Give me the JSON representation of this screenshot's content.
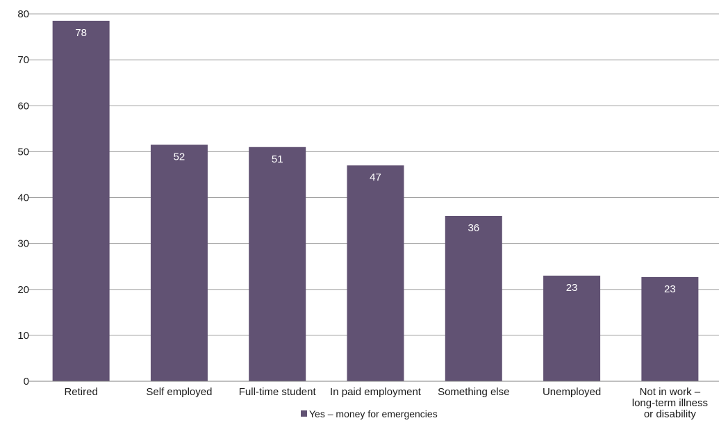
{
  "chart_data": {
    "type": "bar",
    "categories": [
      "Retired",
      "Self employed",
      "Full-time student",
      "In paid employment",
      "Something else",
      "Unemployed",
      "Not in work – long-term illness or disability"
    ],
    "category_lines": [
      [
        "Retired"
      ],
      [
        "Self employed"
      ],
      [
        "Full-time student"
      ],
      [
        "In paid employment"
      ],
      [
        "Something else"
      ],
      [
        "Unemployed"
      ],
      [
        "Not in work –",
        "long-term illness",
        "or disability"
      ]
    ],
    "series": [
      {
        "name": "Yes – money for emergencies",
        "values": [
          78.5,
          51.5,
          51,
          47,
          36,
          23,
          22.7
        ],
        "labels": [
          "78",
          "52",
          "51",
          "47",
          "36",
          "23",
          "23"
        ],
        "color": "#615273"
      }
    ],
    "ylim": [
      0,
      80
    ],
    "yticks": [
      0,
      10,
      20,
      30,
      40,
      50,
      60,
      70,
      80
    ],
    "grid": true,
    "grid_color": "#a0a0a0",
    "legend_position": "bottom"
  }
}
